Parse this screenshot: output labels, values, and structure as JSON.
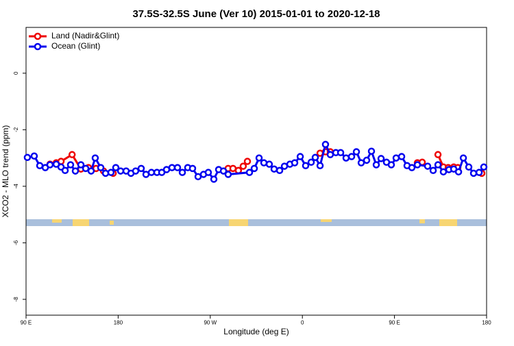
{
  "chart_data": {
    "type": "line",
    "title": "37.5S-32.5S June (Ver 10)   2015-01-01 to 2020-12-18",
    "xlabel": "Longitude (deg E)",
    "ylabel": "XCO2 - MLO trend (ppm)",
    "xlim": [
      90,
      540
    ],
    "ylim": [
      -8.56,
      1.62
    ],
    "xticks": [
      {
        "value": 90,
        "label": "90 E"
      },
      180,
      {
        "value": 270,
        "label": "90 W"
      },
      {
        "value": 360,
        "label": "0"
      },
      {
        "value": 450,
        "label": "90 E"
      },
      {
        "value": 540,
        "label": "180"
      }
    ],
    "yticks": [
      0,
      -2,
      -4,
      -6,
      -8
    ],
    "legend": "top-left",
    "series": [
      {
        "name": "Land (Nadir&Glint)",
        "color": "#ee0000",
        "x": [
          113.4,
          119.5,
          124.2,
          135.0,
          143.6,
          151.0,
          158.4,
          165.7,
          175.1,
          null,
          287.5,
          292.2,
          297.5,
          302.2,
          306.3,
          null,
          377.3,
          382.6,
          387.3,
          null,
          472.4,
          477.1,
          null,
          492.5,
          497.8,
          502.5,
          507.9,
          511.9,
          null,
          535.3
        ],
        "values": [
          -3.22,
          -3.17,
          -3.12,
          -2.88,
          -3.39,
          -3.34,
          -3.37,
          -3.46,
          -3.54,
          null,
          -3.37,
          -3.37,
          -3.44,
          -3.29,
          -3.12,
          null,
          -2.83,
          -2.78,
          -2.78,
          null,
          -3.17,
          -3.15,
          null,
          -2.88,
          -3.32,
          -3.34,
          -3.32,
          -3.34,
          null,
          -3.54
        ]
      },
      {
        "name": "Ocean (Glint)",
        "color": "#0000ee",
        "x": [
          91.3,
          98,
          103.4,
          108.8,
          113.4,
          119.5,
          124.2,
          128.2,
          133.5,
          138.2,
          143.6,
          148.3,
          153.6,
          157.6,
          163,
          167.7,
          173,
          177.7,
          182.4,
          187.8,
          192.5,
          197.1,
          202.5,
          207.2,
          212.5,
          217.9,
          222.6,
          227.3,
          232.6,
          238,
          242.7,
          248,
          252.7,
          258.1,
          263.4,
          268.1,
          273.5,
          278.2,
          282.9,
          287.5,
          308.3,
          313,
          317.7,
          322.4,
          327.7,
          332.4,
          337.8,
          342.5,
          347.8,
          352.5,
          357.9,
          363.2,
          368.6,
          372.6,
          377.3,
          382.6,
          387.3,
          392.7,
          397.4,
          402.7,
          408.1,
          412.8,
          417.5,
          422.8,
          427.5,
          432.2,
          436.9,
          442.2,
          446.9,
          451.6,
          457,
          462.3,
          467,
          472.4,
          482.4,
          487.8,
          492.5,
          497.8,
          503.2,
          507.9,
          512.6,
          517.3,
          522.6,
          527.3,
          532.7,
          537.3
        ],
        "values": [
          -2.98,
          -2.93,
          -3.27,
          -3.34,
          -3.24,
          -3.22,
          -3.32,
          -3.44,
          -3.24,
          -3.46,
          -3.24,
          -3.37,
          -3.46,
          -3.0,
          -3.34,
          -3.54,
          -3.51,
          -3.34,
          -3.46,
          -3.46,
          -3.54,
          -3.46,
          -3.37,
          -3.58,
          -3.51,
          -3.51,
          -3.51,
          -3.41,
          -3.34,
          -3.34,
          -3.51,
          -3.34,
          -3.37,
          -3.66,
          -3.58,
          -3.51,
          -3.75,
          -3.41,
          -3.46,
          -3.58,
          -3.51,
          -3.37,
          -3.0,
          -3.17,
          -3.22,
          -3.39,
          -3.44,
          -3.29,
          -3.22,
          -3.17,
          -2.95,
          -3.27,
          -3.15,
          -2.98,
          -3.27,
          -2.52,
          -2.88,
          -2.81,
          -2.81,
          -3.0,
          -2.95,
          -2.78,
          -3.17,
          -3.08,
          -2.76,
          -3.24,
          -3.02,
          -3.15,
          -3.24,
          -3.0,
          -2.95,
          -3.27,
          -3.34,
          -3.24,
          -3.29,
          -3.44,
          -3.24,
          -3.49,
          -3.41,
          -3.39,
          -3.49,
          -3.0,
          -3.32,
          -3.54,
          -3.51,
          -3.32
        ]
      }
    ]
  }
}
